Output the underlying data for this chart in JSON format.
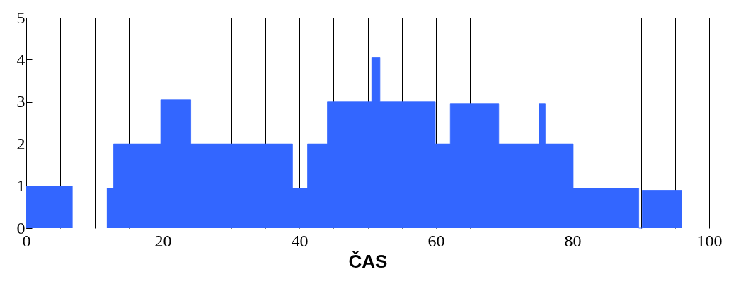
{
  "chart_data": {
    "type": "area",
    "xlabel": "ČAS",
    "series": [
      {
        "color": "#3366ff",
        "x": [
          0,
          6.8
        ],
        "values": [
          1,
          1
        ]
      },
      {
        "color": "#3366ff",
        "x": [
          11.8,
          12.8,
          19.7,
          24.1,
          39,
          41.2,
          44.1,
          50.6,
          51.8,
          59.9,
          62.1,
          69.2,
          75.1,
          76,
          80.1,
          89.7,
          90.2,
          96
        ],
        "values": [
          0.95,
          2,
          3.05,
          2,
          0.95,
          2,
          3,
          4.05,
          3,
          2,
          2.95,
          2,
          2.95,
          2,
          0.95,
          0,
          0.9,
          0.9
        ]
      }
    ],
    "xlim": [
      0,
      100
    ],
    "ylim": [
      0,
      5
    ],
    "xticks": [
      0,
      {
        "value": 5,
        "label": null
      },
      {
        "value": 10,
        "label": null
      },
      {
        "value": 15,
        "label": null
      },
      20,
      {
        "value": 25,
        "label": null
      },
      {
        "value": 30,
        "label": null
      },
      {
        "value": 35,
        "label": null
      },
      40,
      {
        "value": 45,
        "label": null
      },
      {
        "value": 50,
        "label": null
      },
      {
        "value": 55,
        "label": null
      },
      60,
      {
        "value": 65,
        "label": null
      },
      {
        "value": 70,
        "label": null
      },
      {
        "value": 75,
        "label": null
      },
      80,
      {
        "value": 85,
        "label": null
      },
      {
        "value": 90,
        "label": null
      },
      {
        "value": 95,
        "label": null
      },
      100
    ],
    "yticks": [
      0,
      1,
      2,
      3,
      4,
      5
    ],
    "grid": "x"
  }
}
